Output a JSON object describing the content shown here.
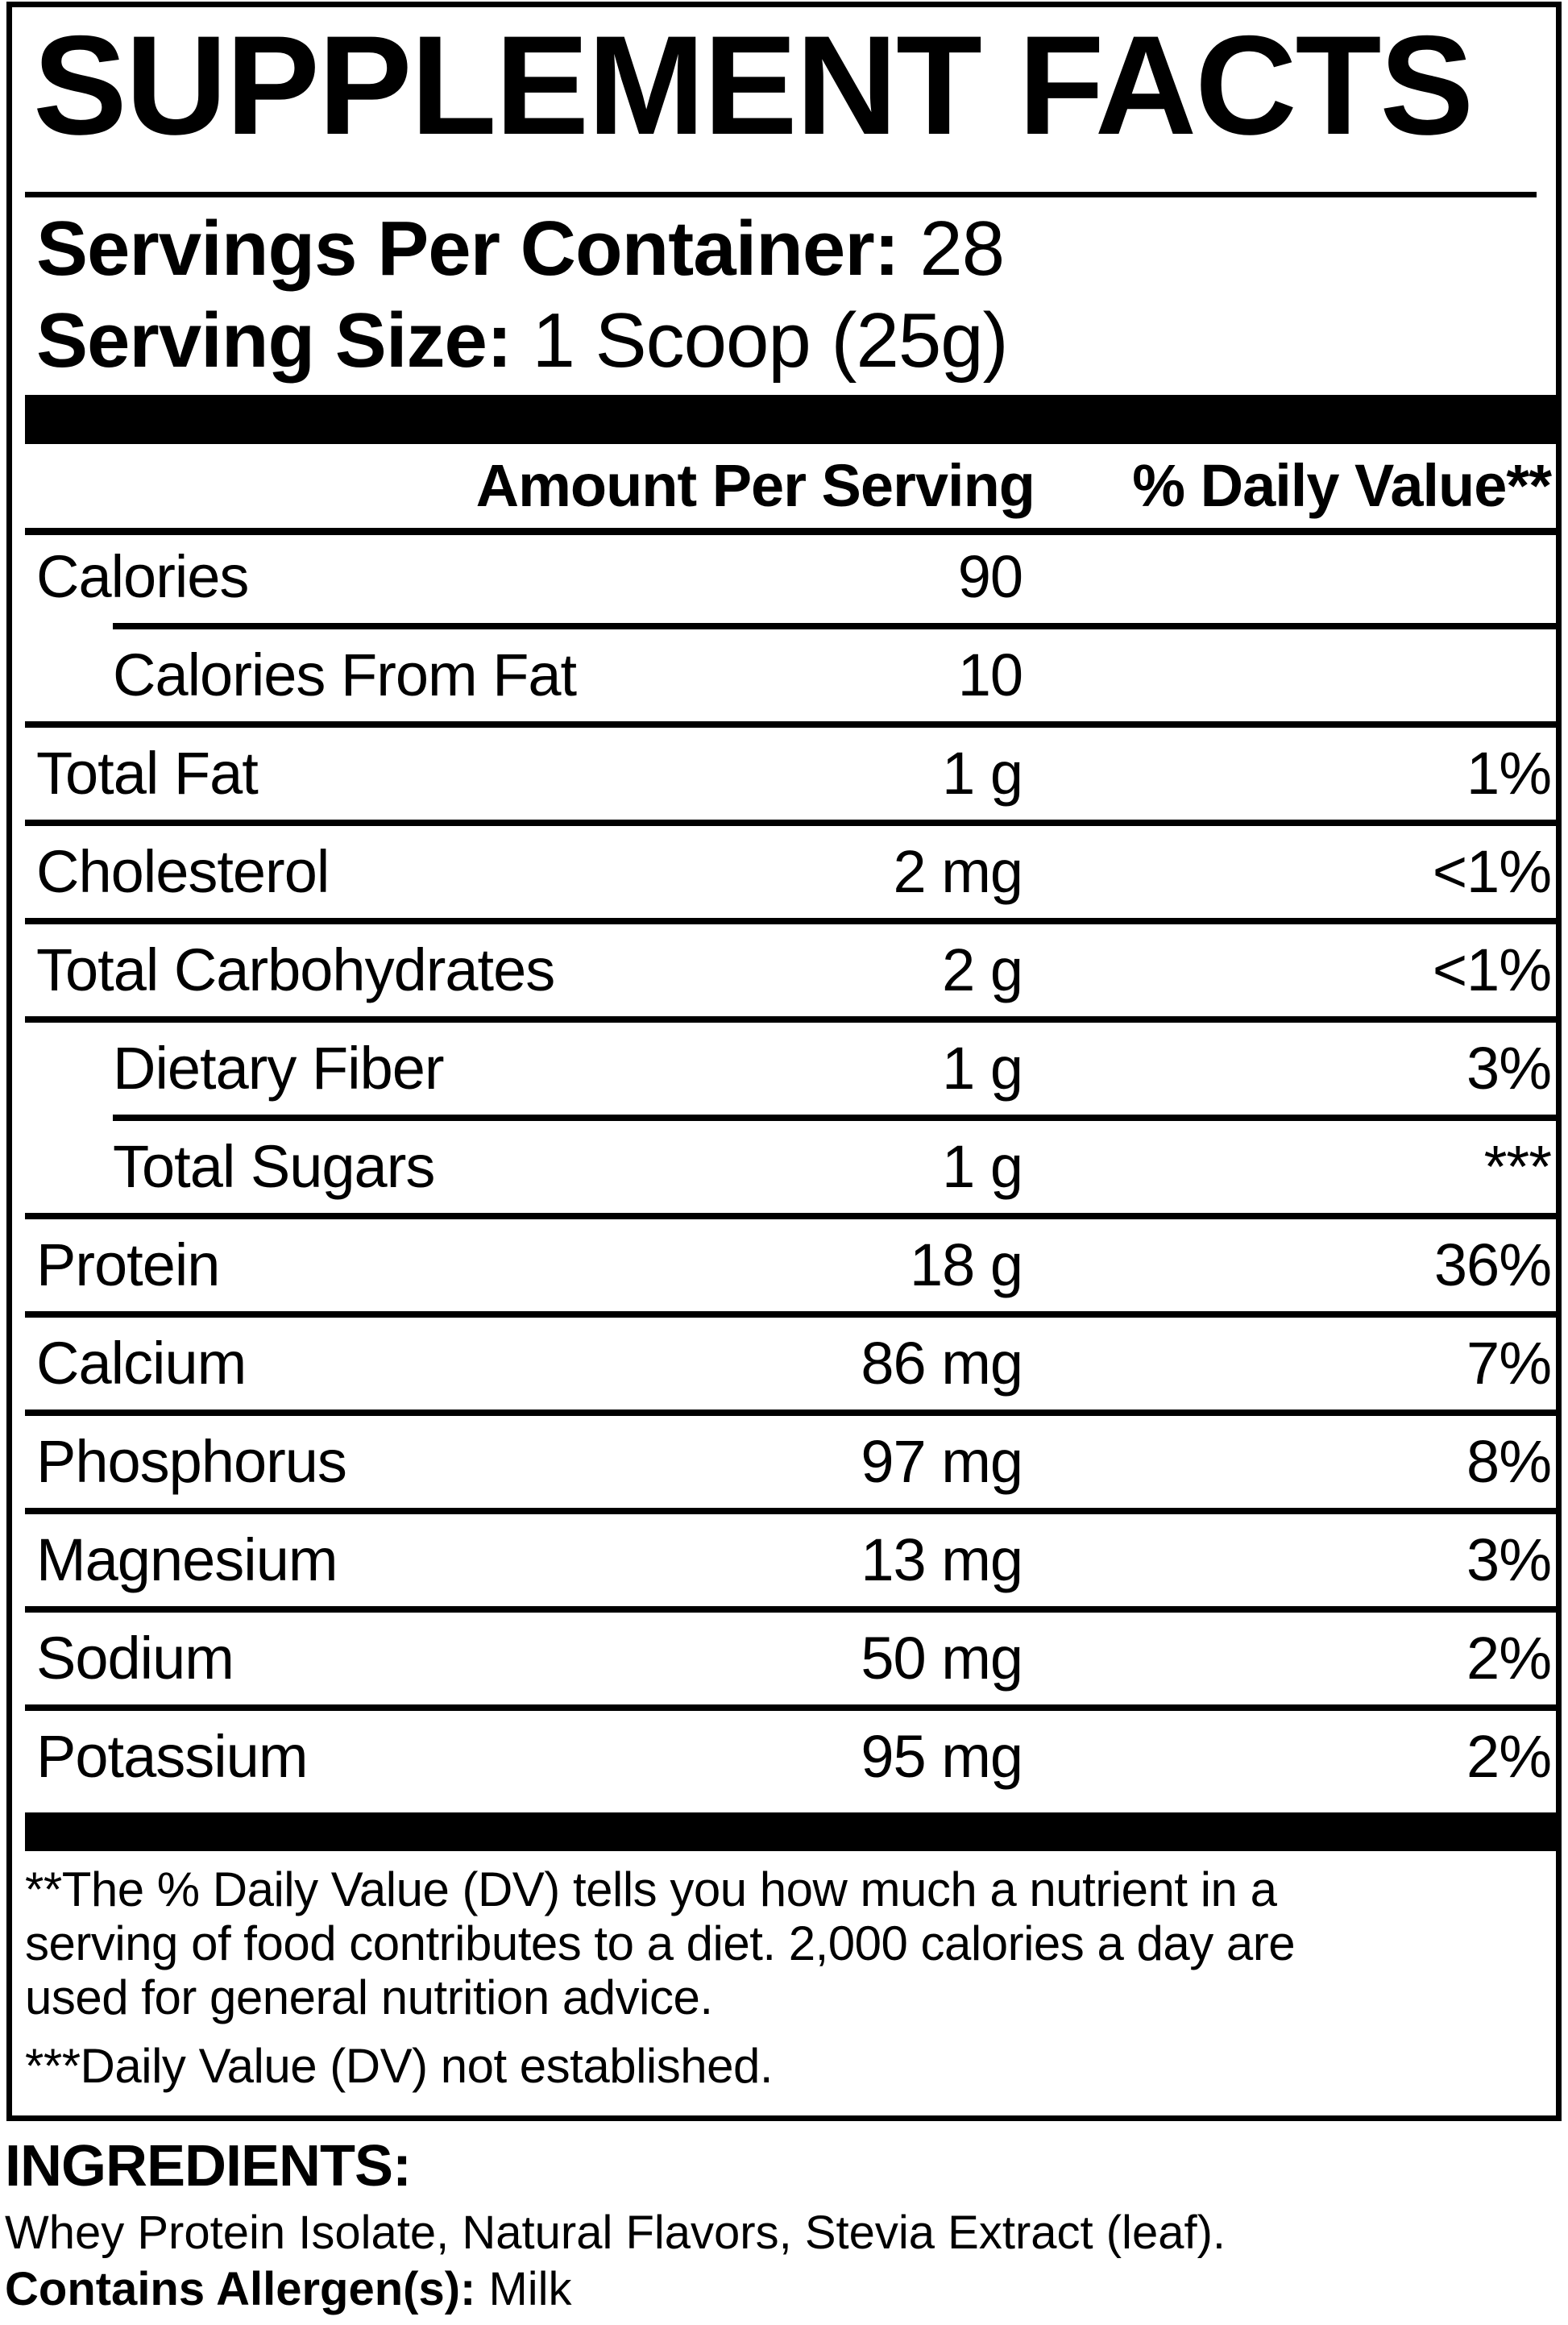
{
  "panel": {
    "title": "SUPPLEMENT FACTS",
    "servings": {
      "label": "Servings Per Container:",
      "value": "28"
    },
    "serving_size": {
      "label": "Serving Size:",
      "value": "1 Scoop (25g)"
    },
    "header": {
      "amount": "Amount Per Serving",
      "dv": "% Daily Value**"
    },
    "rows": [
      {
        "name": "Calories",
        "amount": "90",
        "dv": "",
        "indent": false,
        "sep_above": "none"
      },
      {
        "name": "Calories From Fat",
        "amount": "10",
        "dv": "",
        "indent": true,
        "sep_above": "indented"
      },
      {
        "name": "Total Fat",
        "amount": "1 g",
        "dv": "1%",
        "indent": false,
        "sep_above": "full"
      },
      {
        "name": "Cholesterol",
        "amount": "2 mg",
        "dv": "<1%",
        "indent": false,
        "sep_above": "full"
      },
      {
        "name": "Total Carbohydrates",
        "amount": "2 g",
        "dv": "<1%",
        "indent": false,
        "sep_above": "full"
      },
      {
        "name": "Dietary Fiber",
        "amount": "1 g",
        "dv": "3%",
        "indent": true,
        "sep_above": "full"
      },
      {
        "name": "Total Sugars",
        "amount": "1 g",
        "dv": "***",
        "indent": true,
        "sep_above": "indented"
      },
      {
        "name": "Protein",
        "amount": "18 g",
        "dv": "36%",
        "indent": false,
        "sep_above": "full"
      },
      {
        "name": "Calcium",
        "amount": "86 mg",
        "dv": "7%",
        "indent": false,
        "sep_above": "full"
      },
      {
        "name": "Phosphorus",
        "amount": "97 mg",
        "dv": "8%",
        "indent": false,
        "sep_above": "full"
      },
      {
        "name": "Magnesium",
        "amount": "13 mg",
        "dv": "3%",
        "indent": false,
        "sep_above": "full"
      },
      {
        "name": "Sodium",
        "amount": "50 mg",
        "dv": "2%",
        "indent": false,
        "sep_above": "full"
      },
      {
        "name": "Potassium",
        "amount": "95 mg",
        "dv": "2%",
        "indent": false,
        "sep_above": "full"
      }
    ],
    "footnotes": {
      "dv_note_lines": [
        "**The % Daily Value (DV) tells you how much a nutrient in a",
        "serving of food contributes to a diet. 2,000 calories a day are",
        "used for general nutrition advice."
      ],
      "not_established": "***Daily Value (DV) not established."
    }
  },
  "ingredients": {
    "title": "INGREDIENTS:",
    "list": "Whey Protein Isolate, Natural Flavors, Stevia Extract (leaf).",
    "allergen_label": "Contains Allergen(s):",
    "allergen_value": "Milk"
  },
  "colors": {
    "ink": "#000000",
    "paper": "#ffffff"
  }
}
